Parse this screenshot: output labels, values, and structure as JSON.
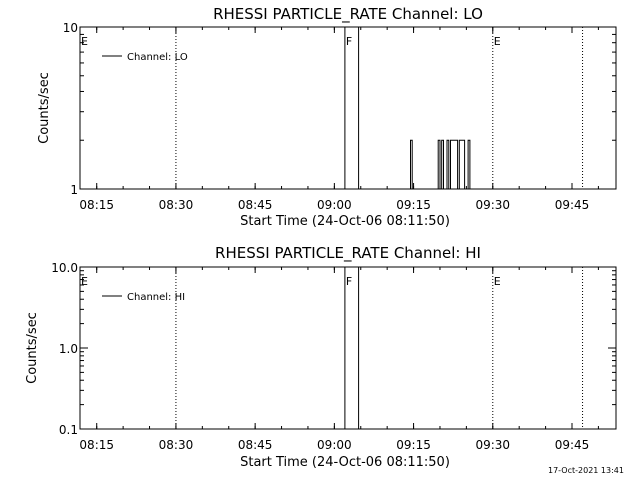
{
  "chart_data": [
    {
      "type": "line",
      "title": "RHESSI PARTICLE_RATE Channel: LO",
      "xlabel": "Start Time (24-Oct-06 08:11:50)",
      "ylabel": "Counts/sec",
      "yscale": "log",
      "ylim": [
        1,
        10
      ],
      "yticks": [
        1,
        10
      ],
      "ytick_labels": [
        "1",
        "10"
      ],
      "xlim": [
        "08:11:50",
        "09:53:20"
      ],
      "xticks": [
        "08:15",
        "08:30",
        "08:45",
        "09:00",
        "09:15",
        "09:30",
        "09:45"
      ],
      "grid": false,
      "legend_position": "top-left",
      "series": [
        {
          "name": "Channel: LO",
          "x": [
            "09:02:00",
            "09:02:00",
            "09:04:35",
            "09:04:35",
            "09:14:25",
            "09:14:25",
            "09:14:45",
            "09:14:45",
            "09:19:40",
            "09:19:40",
            "09:20:00",
            "09:20:00",
            "09:20:20",
            "09:20:20",
            "09:20:40",
            "09:20:40",
            "09:21:20",
            "09:21:20",
            "09:21:40",
            "09:21:40",
            "09:22:00",
            "09:22:00",
            "09:23:20",
            "09:23:20",
            "09:23:40",
            "09:23:40",
            "09:24:40",
            "09:24:40",
            "09:25:20",
            "09:25:20",
            "09:25:40",
            "09:25:40"
          ],
          "y": [
            1,
            10,
            10,
            1,
            1,
            2,
            2,
            1,
            1,
            2,
            2,
            1,
            1,
            2,
            2,
            1,
            1,
            2,
            2,
            1,
            1,
            2,
            2,
            1,
            1,
            2,
            2,
            1,
            1,
            2,
            2,
            1
          ]
        }
      ],
      "vlines_dotted": [
        "08:30",
        "09:30",
        "09:47"
      ],
      "flags": [
        {
          "label": "E",
          "x": "08:11:50"
        },
        {
          "label": "F",
          "x": "09:02:00"
        },
        {
          "label": "E",
          "x": "09:30:00"
        }
      ]
    },
    {
      "type": "line",
      "title": "RHESSI PARTICLE_RATE Channel: HI",
      "xlabel": "Start Time (24-Oct-06 08:11:50)",
      "ylabel": "Counts/sec",
      "yscale": "log",
      "ylim": [
        0.1,
        10
      ],
      "yticks": [
        0.1,
        1,
        10
      ],
      "ytick_labels": [
        "0.1",
        "1.0",
        "10.0"
      ],
      "xlim": [
        "08:11:50",
        "09:53:20"
      ],
      "xticks": [
        "08:15",
        "08:30",
        "08:45",
        "09:00",
        "09:15",
        "09:30",
        "09:45"
      ],
      "grid": false,
      "legend_position": "top-left",
      "series": [
        {
          "name": "Channel: HI",
          "x": [
            "09:02:00",
            "09:02:00",
            "09:04:35",
            "09:04:35"
          ],
          "y": [
            0.1,
            10,
            10,
            0.1
          ]
        }
      ],
      "vlines_dotted": [
        "08:30",
        "09:30",
        "09:47"
      ],
      "flags": [
        {
          "label": "E",
          "x": "08:11:50"
        },
        {
          "label": "F",
          "x": "09:02:00"
        },
        {
          "label": "E",
          "x": "09:30:00"
        }
      ]
    }
  ],
  "footer": {
    "timestamp": "17-Oct-2021 13:41"
  }
}
